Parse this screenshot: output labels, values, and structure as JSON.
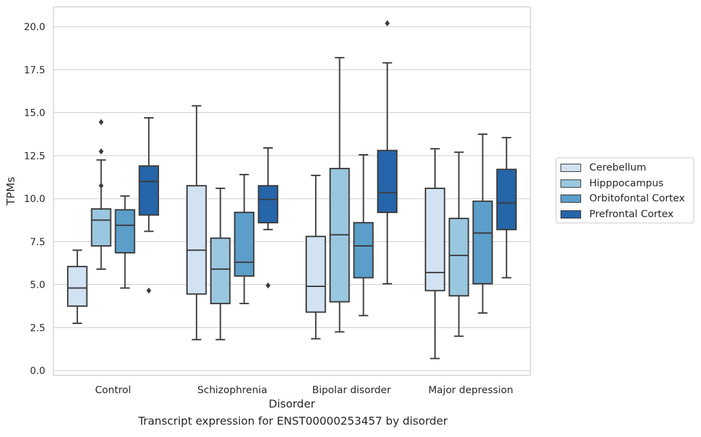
{
  "chart_data": {
    "type": "box",
    "categories": [
      "Control",
      "Schizophrenia",
      "Bipolar disorder",
      "Major depression"
    ],
    "xlabel": "Disorder",
    "ylabel": "TPMs",
    "ylim": [
      -0.3,
      21.2
    ],
    "yticks": [
      0.0,
      2.5,
      5.0,
      7.5,
      10.0,
      12.5,
      15.0,
      17.5,
      20.0
    ],
    "ytick_labels": [
      "0.0",
      "2.5",
      "5.0",
      "7.5",
      "10.0",
      "12.5",
      "15.0",
      "17.5",
      "20.0"
    ],
    "grid": "horizontal",
    "legend_position": "right",
    "series": [
      {
        "name": "Cerebellum",
        "color": "#d1e2f2",
        "boxes": [
          {
            "whislo": 2.75,
            "q1": 3.75,
            "med": 4.8,
            "q3": 6.05,
            "whishi": 7.0,
            "fliers": []
          },
          {
            "whislo": 1.8,
            "q1": 4.45,
            "med": 7.0,
            "q3": 10.75,
            "whishi": 15.4,
            "fliers": []
          },
          {
            "whislo": 1.85,
            "q1": 3.4,
            "med": 4.9,
            "q3": 7.8,
            "whishi": 11.35,
            "fliers": []
          },
          {
            "whislo": 0.7,
            "q1": 4.65,
            "med": 5.7,
            "q3": 10.6,
            "whishi": 12.9,
            "fliers": []
          }
        ]
      },
      {
        "name": "Hipppocampus",
        "color": "#9ac7e0",
        "boxes": [
          {
            "whislo": 5.9,
            "q1": 7.25,
            "med": 8.75,
            "q3": 9.4,
            "whishi": 12.25,
            "fliers": [
              10.75,
              12.75,
              14.45
            ]
          },
          {
            "whislo": 1.8,
            "q1": 3.9,
            "med": 5.9,
            "q3": 7.7,
            "whishi": 10.6,
            "fliers": []
          },
          {
            "whislo": 2.25,
            "q1": 4.0,
            "med": 7.9,
            "q3": 11.75,
            "whishi": 18.2,
            "fliers": []
          },
          {
            "whislo": 2.0,
            "q1": 4.35,
            "med": 6.7,
            "q3": 8.85,
            "whishi": 12.7,
            "fliers": []
          }
        ]
      },
      {
        "name": "Orbitofontal Cortex",
        "color": "#5a9ec9",
        "boxes": [
          {
            "whislo": 4.8,
            "q1": 6.85,
            "med": 8.45,
            "q3": 9.35,
            "whishi": 10.15,
            "fliers": []
          },
          {
            "whislo": 3.9,
            "q1": 5.5,
            "med": 6.3,
            "q3": 9.2,
            "whishi": 11.4,
            "fliers": []
          },
          {
            "whislo": 3.2,
            "q1": 5.4,
            "med": 7.25,
            "q3": 8.6,
            "whishi": 12.55,
            "fliers": []
          },
          {
            "whislo": 3.35,
            "q1": 5.05,
            "med": 8.0,
            "q3": 9.85,
            "whishi": 13.75,
            "fliers": []
          }
        ]
      },
      {
        "name": "Prefrontal Cortex",
        "color": "#2565a9",
        "boxes": [
          {
            "whislo": 8.1,
            "q1": 9.05,
            "med": 11.0,
            "q3": 11.9,
            "whishi": 14.7,
            "fliers": [
              4.65
            ]
          },
          {
            "whislo": 8.2,
            "q1": 8.6,
            "med": 9.95,
            "q3": 10.75,
            "whishi": 12.95,
            "fliers": [
              4.95
            ]
          },
          {
            "whislo": 5.05,
            "q1": 9.2,
            "med": 10.35,
            "q3": 12.8,
            "whishi": 17.9,
            "fliers": [
              20.2
            ]
          },
          {
            "whislo": 5.4,
            "q1": 8.2,
            "med": 9.75,
            "q3": 11.7,
            "whishi": 13.55,
            "fliers": []
          }
        ]
      }
    ]
  },
  "caption": "Transcript expression for ENST00000253457 by disorder"
}
